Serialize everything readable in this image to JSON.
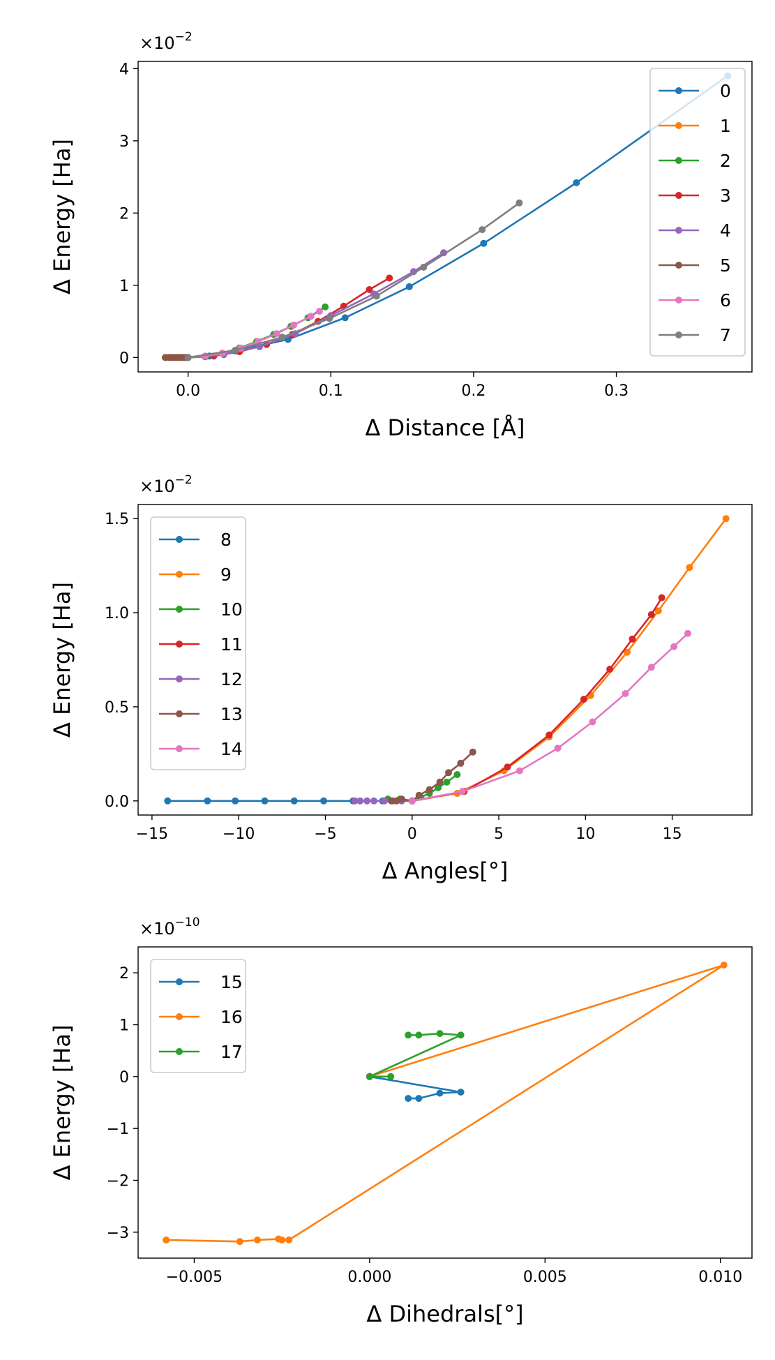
{
  "chart_data": [
    {
      "type": "line",
      "multiplier": "×10",
      "exponent": "−2",
      "xlabel": "Δ Distance [Å]",
      "ylabel": "Δ Energy [Ha]",
      "xlim": [
        -0.035,
        0.395
      ],
      "ylim": [
        -0.2,
        4.1
      ],
      "xticks": [
        0.0,
        0.1,
        0.2,
        0.3
      ],
      "xtick_labels": [
        "0.0",
        "0.1",
        "0.2",
        "0.3"
      ],
      "yticks": [
        0,
        1,
        2,
        3,
        4
      ],
      "ytick_labels": [
        "0",
        "1",
        "2",
        "3",
        "4"
      ],
      "legend_position": "upper right",
      "series": [
        {
          "name": "0",
          "color": "#1f77b4",
          "x": [
            0.0,
            0.015,
            0.033,
            0.07,
            0.11,
            0.155,
            0.207,
            0.272,
            0.378
          ],
          "y": [
            0.0,
            0.02,
            0.09,
            0.25,
            0.55,
            0.98,
            1.58,
            2.42,
            3.9
          ]
        },
        {
          "name": "1",
          "color": "#ff7f0e",
          "x": [
            -0.015,
            -0.012,
            -0.01,
            -0.008,
            -0.006,
            -0.004,
            -0.002,
            0.0
          ],
          "y": [
            0.0,
            0.0,
            0.0,
            0.0,
            0.0,
            0.0,
            0.0,
            0.0
          ]
        },
        {
          "name": "2",
          "color": "#2ca02c",
          "x": [
            0.0,
            0.012,
            0.024,
            0.036,
            0.048,
            0.06,
            0.072,
            0.084,
            0.096
          ],
          "y": [
            0.0,
            0.01,
            0.06,
            0.13,
            0.22,
            0.32,
            0.43,
            0.55,
            0.7
          ]
        },
        {
          "name": "3",
          "color": "#d62728",
          "x": [
            0.0,
            0.018,
            0.036,
            0.055,
            0.073,
            0.091,
            0.109,
            0.127,
            0.141
          ],
          "y": [
            0.0,
            0.02,
            0.08,
            0.18,
            0.32,
            0.5,
            0.71,
            0.94,
            1.1
          ]
        },
        {
          "name": "4",
          "color": "#9467bd",
          "x": [
            0.0,
            0.025,
            0.05,
            0.075,
            0.1,
            0.13,
            0.158,
            0.179
          ],
          "y": [
            0.0,
            0.04,
            0.15,
            0.33,
            0.58,
            0.88,
            1.19,
            1.45
          ]
        },
        {
          "name": "5",
          "color": "#8c564b",
          "x": [
            -0.016,
            -0.013,
            -0.011,
            -0.009,
            -0.007,
            -0.005,
            -0.003,
            -0.001
          ],
          "y": [
            0.0,
            0.0,
            0.0,
            0.0,
            0.0,
            0.0,
            0.0,
            0.0
          ]
        },
        {
          "name": "6",
          "color": "#e377c2",
          "x": [
            0.0,
            0.012,
            0.024,
            0.037,
            0.049,
            0.062,
            0.074,
            0.086,
            0.092
          ],
          "y": [
            0.0,
            0.02,
            0.06,
            0.13,
            0.22,
            0.33,
            0.45,
            0.57,
            0.64
          ]
        },
        {
          "name": "7",
          "color": "#7f7f7f",
          "x": [
            0.0,
            0.033,
            0.066,
            0.099,
            0.132,
            0.165,
            0.206,
            0.232
          ],
          "y": [
            0.0,
            0.1,
            0.28,
            0.54,
            0.85,
            1.25,
            1.77,
            2.14
          ]
        }
      ]
    },
    {
      "type": "line",
      "multiplier": "×10",
      "exponent": "−2",
      "xlabel": "Δ Angles[°]",
      "ylabel": "Δ Energy [Ha]",
      "xlim": [
        -15.8,
        19.6
      ],
      "ylim": [
        -0.075,
        1.575
      ],
      "xticks": [
        -15,
        -10,
        -5,
        0,
        5,
        10,
        15
      ],
      "xtick_labels": [
        "−15",
        "−10",
        "−5",
        "0",
        "5",
        "10",
        "15"
      ],
      "yticks": [
        0.0,
        0.5,
        1.0,
        1.5
      ],
      "ytick_labels": [
        "0.0",
        "0.5",
        "1.0",
        "1.5"
      ],
      "legend_position": "upper left",
      "series": [
        {
          "name": "8",
          "color": "#1f77b4",
          "x": [
            -14.1,
            -11.8,
            -10.2,
            -8.5,
            -6.8,
            -5.1,
            -3.4,
            -1.7,
            0.0
          ],
          "y": [
            0.0,
            0.0,
            0.0,
            0.0,
            0.0,
            0.0,
            0.0,
            0.0,
            0.0
          ]
        },
        {
          "name": "9",
          "color": "#ff7f0e",
          "x": [
            0.0,
            2.6,
            5.3,
            7.9,
            10.3,
            12.4,
            14.2,
            16.0,
            18.1
          ],
          "y": [
            0.0,
            0.04,
            0.16,
            0.34,
            0.56,
            0.79,
            1.01,
            1.24,
            1.5
          ]
        },
        {
          "name": "10",
          "color": "#2ca02c",
          "x": [
            -1.4,
            -0.7,
            0.0,
            0.5,
            1.0,
            1.5,
            2.0,
            2.6
          ],
          "y": [
            0.01,
            0.01,
            0.0,
            0.02,
            0.04,
            0.07,
            0.1,
            0.14
          ]
        },
        {
          "name": "11",
          "color": "#d62728",
          "x": [
            0.0,
            3.0,
            5.5,
            7.9,
            9.9,
            11.4,
            12.7,
            13.8,
            14.4
          ],
          "y": [
            0.0,
            0.05,
            0.18,
            0.35,
            0.54,
            0.7,
            0.86,
            0.99,
            1.08
          ]
        },
        {
          "name": "12",
          "color": "#9467bd",
          "x": [
            -3.3,
            -3.0,
            -2.6,
            -2.2,
            -1.6,
            -1.1,
            -0.6,
            0.0
          ],
          "y": [
            0.0,
            0.0,
            0.0,
            0.0,
            0.0,
            0.0,
            0.0,
            0.0
          ]
        },
        {
          "name": "13",
          "color": "#8c564b",
          "x": [
            -1.2,
            -0.9,
            -0.6,
            0.0,
            0.4,
            1.0,
            1.6,
            2.1,
            2.8,
            3.5
          ],
          "y": [
            0.0,
            0.0,
            0.01,
            0.0,
            0.03,
            0.06,
            0.1,
            0.15,
            0.2,
            0.26
          ]
        },
        {
          "name": "14",
          "color": "#e377c2",
          "x": [
            0.0,
            2.9,
            6.2,
            8.4,
            10.4,
            12.3,
            13.8,
            15.1,
            15.9
          ],
          "y": [
            0.0,
            0.05,
            0.16,
            0.28,
            0.42,
            0.57,
            0.71,
            0.82,
            0.89
          ]
        }
      ]
    },
    {
      "type": "line",
      "multiplier": "×10",
      "exponent": "−10",
      "xlabel": "Δ Dihedrals[°]",
      "ylabel": "Δ Energy [Ha]",
      "xlim": [
        -0.0066,
        0.0109
      ],
      "ylim": [
        -3.5,
        2.5
      ],
      "xticks": [
        -0.005,
        0.0,
        0.005,
        0.01
      ],
      "xtick_labels": [
        "−0.005",
        "0.000",
        "0.005",
        "0.010"
      ],
      "yticks": [
        -3,
        -2,
        -1,
        0,
        1,
        2
      ],
      "ytick_labels": [
        "−3",
        "−2",
        "−1",
        "0",
        "1",
        "2"
      ],
      "legend_position": "upper left",
      "series": [
        {
          "name": "15",
          "color": "#1f77b4",
          "x": [
            0.0011,
            0.0014,
            0.002,
            0.0026,
            0.0,
            0.0
          ],
          "y": [
            -0.42,
            -0.42,
            -0.32,
            -0.3,
            0.0,
            0.0
          ]
        },
        {
          "name": "16",
          "color": "#ff7f0e",
          "x": [
            -0.0058,
            -0.0037,
            -0.0032,
            -0.0026,
            -0.0025,
            -0.0023,
            0.0101,
            0.0
          ],
          "y": [
            -3.15,
            -3.18,
            -3.15,
            -3.13,
            -3.15,
            -3.15,
            2.15,
            0.0
          ]
        },
        {
          "name": "17",
          "color": "#2ca02c",
          "x": [
            0.0011,
            0.0014,
            0.002,
            0.0026,
            0.0,
            0.0006
          ],
          "y": [
            0.8,
            0.8,
            0.83,
            0.8,
            0.0,
            0.0
          ]
        }
      ]
    }
  ]
}
